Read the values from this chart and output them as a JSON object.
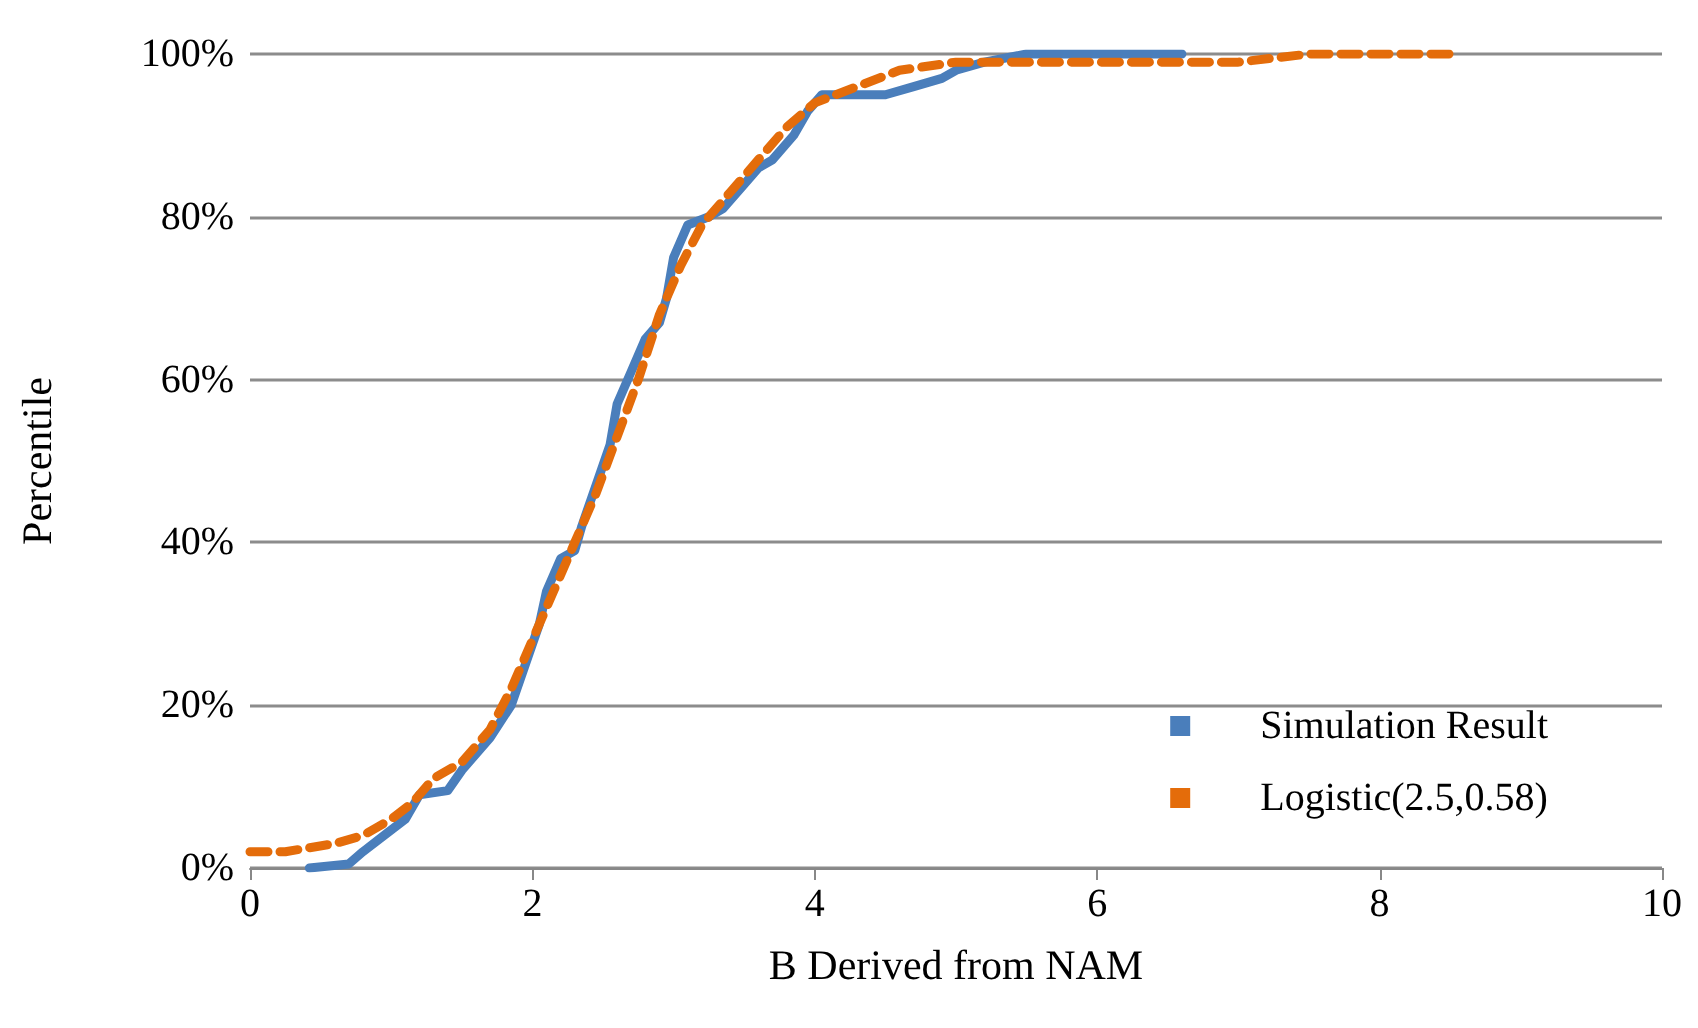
{
  "chart_data": {
    "type": "line",
    "xlabel": "B Derived from NAM",
    "ylabel": "Percentile",
    "xlim": [
      0,
      10
    ],
    "xticks": [
      0,
      2,
      4,
      6,
      8,
      10
    ],
    "ylim": [
      0,
      100
    ],
    "yticks": [
      {
        "value": 0,
        "label": "0%"
      },
      {
        "value": 20,
        "label": "20%"
      },
      {
        "value": 40,
        "label": "40%"
      },
      {
        "value": 60,
        "label": "60%"
      },
      {
        "value": 80,
        "label": "80%"
      },
      {
        "value": 100,
        "label": "100%"
      }
    ],
    "grid": "y",
    "legend": "bottom right",
    "marker": "none",
    "series": [
      {
        "name": "Simulation Result",
        "color": "#4a7ebb",
        "line_style": "solid",
        "x": [
          0.42,
          0.7,
          0.8,
          0.95,
          1.1,
          1.2,
          1.4,
          1.5,
          1.7,
          1.85,
          1.95,
          2.05,
          2.1,
          2.2,
          2.3,
          2.35,
          2.45,
          2.55,
          2.6,
          2.7,
          2.8,
          2.9,
          2.95,
          3.0,
          3.1,
          3.25,
          3.35,
          3.5,
          3.6,
          3.7,
          3.85,
          3.95,
          4.05,
          4.5,
          4.7,
          4.9,
          5.0,
          5.2,
          5.5,
          6.6
        ],
        "values": [
          0,
          0.5,
          2,
          4,
          6,
          9,
          9.5,
          12,
          16,
          20,
          25,
          30,
          34,
          38,
          39,
          42,
          47,
          52,
          57,
          61,
          65,
          67,
          70,
          75,
          79,
          80,
          81,
          84,
          86,
          87,
          90,
          93,
          95,
          95,
          96,
          97,
          98,
          99,
          100,
          100
        ]
      },
      {
        "name": "Logistic(2.5,0.58)",
        "color": "#e46c0a",
        "line_style": "dashed",
        "x": [
          0,
          0.25,
          0.6,
          0.8,
          1.0,
          1.15,
          1.3,
          1.5,
          1.7,
          1.85,
          2.0,
          2.15,
          2.3,
          2.45,
          2.6,
          2.75,
          2.9,
          3.05,
          3.2,
          3.4,
          3.6,
          3.8,
          4.0,
          4.3,
          4.6,
          5.0,
          6.0,
          7.0,
          7.5,
          8.5
        ],
        "values": [
          2,
          2,
          3,
          4,
          6,
          8,
          11,
          13,
          17,
          22,
          28,
          34,
          40,
          46,
          53,
          60,
          68,
          74,
          79,
          83,
          87,
          91,
          94,
          96,
          98,
          99,
          99,
          99,
          100,
          100
        ]
      }
    ]
  }
}
